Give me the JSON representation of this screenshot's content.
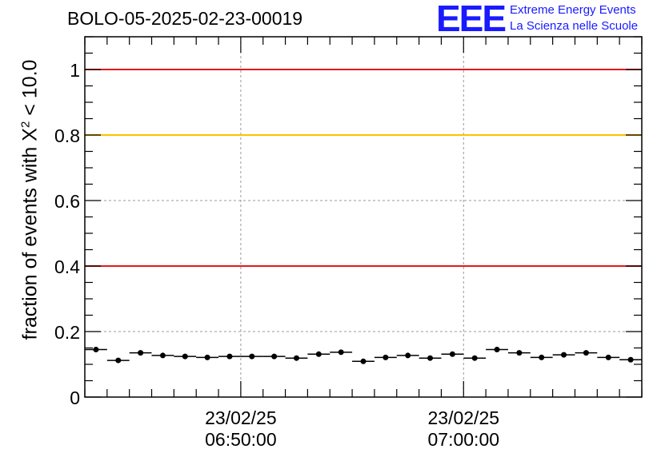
{
  "title": "BOLO-05-2025-02-23-00019",
  "logo": {
    "mark": "EEE",
    "line1": "Extreme Energy Events",
    "line2": "La Scienza nelle Scuole",
    "color": "#1a1aff"
  },
  "chart_data": {
    "type": "scatter",
    "ylabel_prefix": "fraction of events with X",
    "ylabel_sup": "2",
    "ylabel_suffix": " < 10.0",
    "ylim": [
      0,
      1.1
    ],
    "yticks": [
      0,
      0.2,
      0.4,
      0.6,
      0.8,
      1
    ],
    "ytick_labels": [
      "0",
      "0.2",
      "0.4",
      "0.6",
      "0.8",
      "1"
    ],
    "x_range_minutes": [
      0,
      25
    ],
    "xticks": [
      {
        "x": 7,
        "date": "23/02/25",
        "time": "06:50:00"
      },
      {
        "x": 17,
        "date": "23/02/25",
        "time": "07:00:00"
      }
    ],
    "grid": true,
    "reference_lines": [
      {
        "y": 1.0,
        "color": "#e31a1c"
      },
      {
        "y": 0.8,
        "color": "#ffc000"
      },
      {
        "y": 0.4,
        "color": "#e31a1c"
      }
    ],
    "points": [
      {
        "x": 0.5,
        "y": 0.145
      },
      {
        "x": 1.5,
        "y": 0.112
      },
      {
        "x": 2.5,
        "y": 0.135
      },
      {
        "x": 3.5,
        "y": 0.127
      },
      {
        "x": 4.5,
        "y": 0.124
      },
      {
        "x": 5.5,
        "y": 0.121
      },
      {
        "x": 6.5,
        "y": 0.124
      },
      {
        "x": 7.5,
        "y": 0.124
      },
      {
        "x": 8.5,
        "y": 0.124
      },
      {
        "x": 9.5,
        "y": 0.119
      },
      {
        "x": 10.5,
        "y": 0.131
      },
      {
        "x": 11.5,
        "y": 0.137
      },
      {
        "x": 12.5,
        "y": 0.109
      },
      {
        "x": 13.5,
        "y": 0.121
      },
      {
        "x": 14.5,
        "y": 0.127
      },
      {
        "x": 15.5,
        "y": 0.119
      },
      {
        "x": 16.5,
        "y": 0.131
      },
      {
        "x": 17.5,
        "y": 0.119
      },
      {
        "x": 18.5,
        "y": 0.145
      },
      {
        "x": 19.5,
        "y": 0.135
      },
      {
        "x": 20.5,
        "y": 0.121
      },
      {
        "x": 21.5,
        "y": 0.129
      },
      {
        "x": 22.5,
        "y": 0.135
      },
      {
        "x": 23.5,
        "y": 0.121
      },
      {
        "x": 24.5,
        "y": 0.114
      }
    ]
  }
}
